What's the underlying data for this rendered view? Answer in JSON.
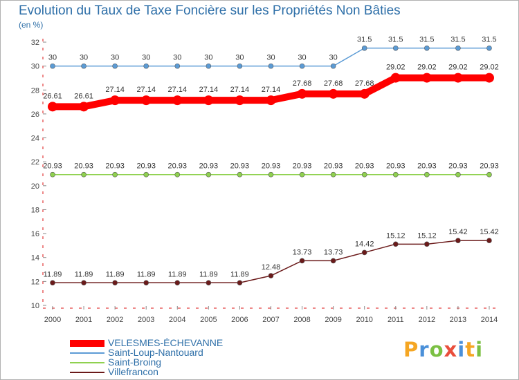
{
  "chart_data": {
    "type": "line",
    "title": "Evolution du Taux de Taxe Foncière sur les Propriétés Non Bâties",
    "ylabel": "(en %)",
    "xlabel": "",
    "ylim": [
      10,
      32
    ],
    "yticks": [
      10,
      12,
      14,
      16,
      18,
      20,
      22,
      24,
      26,
      28,
      30,
      32
    ],
    "grid": false,
    "categories": [
      "2000",
      "2001",
      "2002",
      "2003",
      "2004",
      "2005",
      "2006",
      "2007",
      "2008",
      "2009",
      "2010",
      "2011",
      "2012",
      "2013",
      "2014"
    ],
    "series": [
      {
        "name": "VELESMES-ÉCHEVANNE",
        "color": "#ff0000",
        "values": [
          26.61,
          26.61,
          27.14,
          27.14,
          27.14,
          27.14,
          27.14,
          27.14,
          27.68,
          27.68,
          27.68,
          29.02,
          29.02,
          29.02,
          29.02
        ]
      },
      {
        "name": "Saint-Loup-Nantouard",
        "color": "#5b9bd5",
        "values": [
          30,
          30,
          30,
          30,
          30,
          30,
          30,
          30,
          30,
          30,
          31.5,
          31.5,
          31.5,
          31.5,
          31.5
        ]
      },
      {
        "name": "Saint-Broing",
        "color": "#8fd14f",
        "values": [
          20.93,
          20.93,
          20.93,
          20.93,
          20.93,
          20.93,
          20.93,
          20.93,
          20.93,
          20.93,
          20.93,
          20.93,
          20.93,
          20.93,
          20.93
        ]
      },
      {
        "name": "Villefrancon",
        "color": "#6b1a1a",
        "values": [
          11.89,
          11.89,
          11.89,
          11.89,
          11.89,
          11.89,
          11.89,
          12.48,
          13.73,
          13.73,
          14.42,
          15.12,
          15.12,
          15.42,
          15.42
        ]
      }
    ],
    "legend_position": "bottom-left"
  },
  "header": {
    "title": "Evolution du Taux de Taxe Foncière sur les Propriétés Non Bâties",
    "unit": "(en %)"
  },
  "logo": {
    "text": "Proxiti"
  }
}
